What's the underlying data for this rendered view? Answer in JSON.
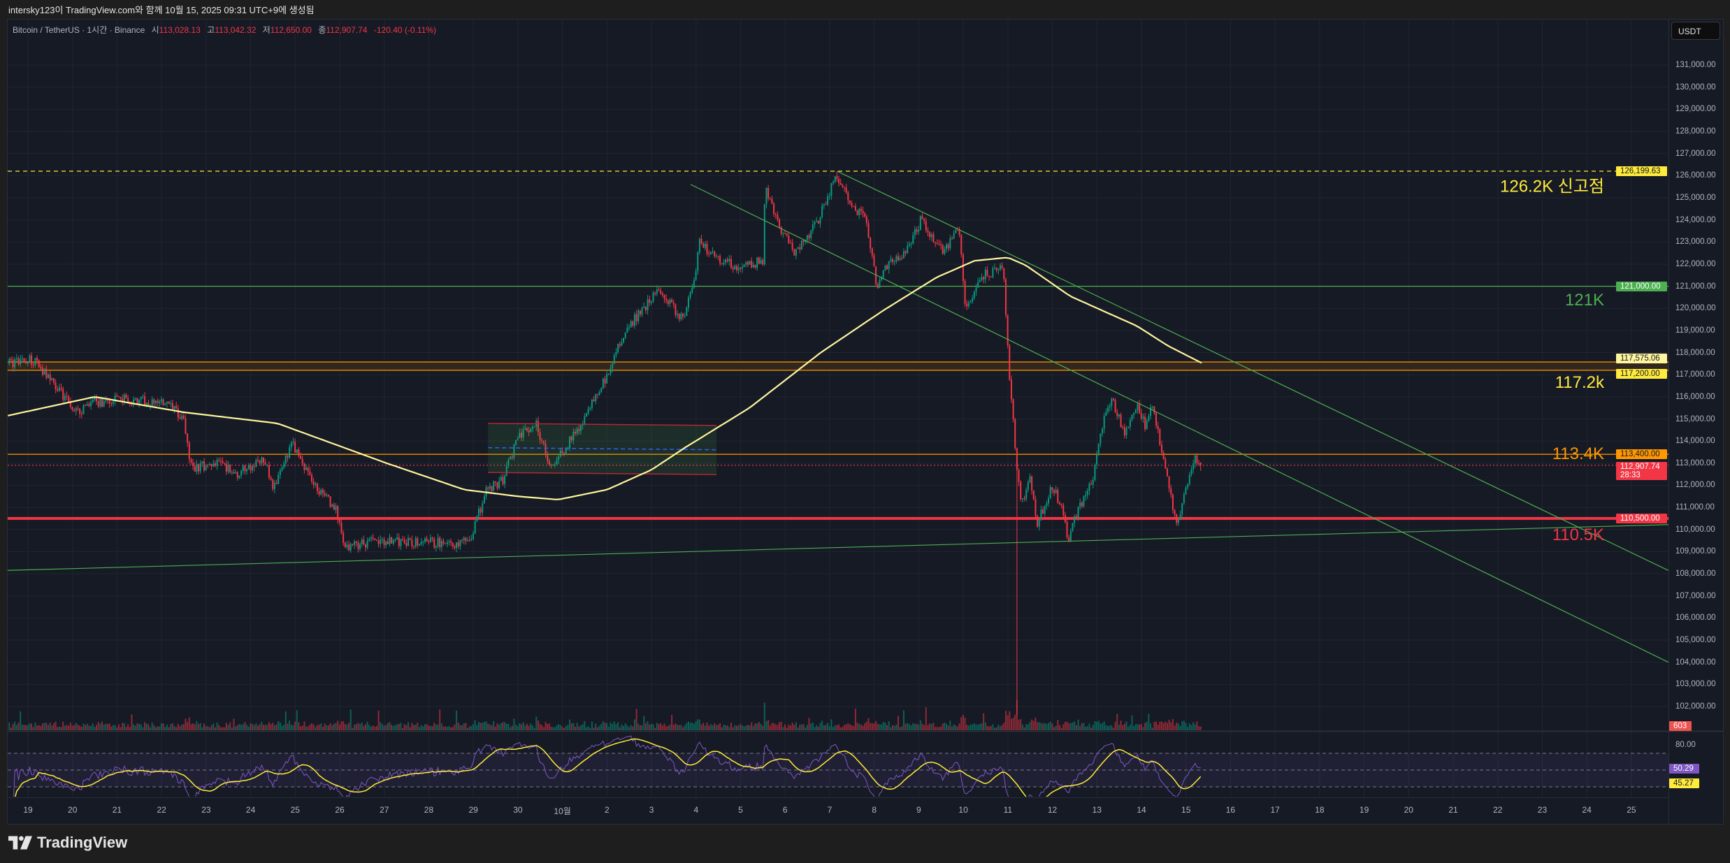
{
  "caption": "intersky123이 TradingView.com와 함께 10월 15, 2025 09:31 UTC+9에 생성됨",
  "legend": {
    "symbol": "Bitcoin / TetherUS · 1시간 · Binance",
    "open_label": "시",
    "open": "113,028.13",
    "high_label": "고",
    "high": "113,042.32",
    "low_label": "저",
    "low": "112,650.00",
    "close_label": "종",
    "close": "112,907.74",
    "change": "-120.40 (-0.11%)"
  },
  "currency_button": "USDT",
  "logo_text": "TradingView",
  "colors": {
    "up": "#089981",
    "down": "#f23645",
    "ma": "#fff59d",
    "rsi": "#7e57c2",
    "rsi_signal": "#ffeb3b",
    "green_line": "#4caf50",
    "orange": "#ff9800",
    "red_line": "#f23645"
  },
  "annotations": [
    {
      "text": "126.2K 신고점",
      "price": 126199.63,
      "color": "#ffeb3b"
    },
    {
      "text": "121K",
      "price": 121000,
      "color": "#4caf50"
    },
    {
      "text": "117.2k",
      "price": 117200,
      "color": "#ffeb3b"
    },
    {
      "text": "113.4K",
      "price": 113400,
      "color": "#ff9800"
    },
    {
      "text": "110.5K",
      "price": 110500,
      "color": "#f23645"
    }
  ],
  "badges": [
    {
      "text": "126,199.63",
      "price": 126199.63,
      "bg": "#ffeb3b",
      "fg": "#131722"
    },
    {
      "text": "121,000.00",
      "price": 121000,
      "bg": "#4caf50",
      "fg": "#ffffff"
    },
    {
      "text": "117,575.06",
      "price": 117575.06,
      "bg": "#fff59d",
      "fg": "#131722"
    },
    {
      "text": "117,200.00",
      "price": 117200,
      "bg": "#ffeb3b",
      "fg": "#131722"
    },
    {
      "text": "113,400.00",
      "price": 113400,
      "bg": "#ff9800",
      "fg": "#131722"
    },
    {
      "text": "112,907.74",
      "sub": "28:33",
      "price": 112907.74,
      "bg": "#f23645",
      "fg": "#ffffff"
    },
    {
      "text": "110,500.00",
      "price": 110500,
      "bg": "#f23645",
      "fg": "#ffffff"
    }
  ],
  "volume_badge": "603",
  "rsi_axis": {
    "tick": "80.00",
    "rsi_value": "50.29",
    "signal_value": "45.27"
  },
  "chart_data": {
    "type": "candlestick",
    "title": "Bitcoin / TetherUS · 1시간 · Binance",
    "x_unit": "days since Sep 19 2025 00:00",
    "y_unit": "USDT",
    "ylim": [
      101500,
      132500
    ],
    "y_ticks": [
      131000,
      130000,
      129000,
      128000,
      127000,
      126000,
      125000,
      124000,
      123000,
      122000,
      121000,
      120000,
      119000,
      118000,
      117000,
      116000,
      115000,
      114000,
      113000,
      112000,
      111000,
      110000,
      109000,
      108000,
      107000,
      106000,
      105000,
      104000,
      103000,
      102000
    ],
    "y_tick_labels": [
      "131,000.00",
      "130,000.00",
      "129,000.00",
      "128,000.00",
      "127,000.00",
      "126,000.00",
      "125,000.00",
      "124,000.00",
      "123,000.00",
      "122,000.00",
      "121,000.00",
      "120,000.00",
      "119,000.00",
      "118,000.00",
      "117,000.00",
      "116,000.00",
      "115,000.00",
      "114,000.00",
      "113,000.00",
      "112,000.00",
      "111,000.00",
      "110,000.00",
      "109,000.00",
      "108,000.00",
      "107,000.00",
      "106,000.00",
      "105,000.00",
      "104,000.00",
      "103,000.00",
      "102,000.00"
    ],
    "x_ticks": [
      0,
      1,
      2,
      3,
      4,
      5,
      6,
      7,
      8,
      9,
      10,
      11,
      12,
      13,
      14,
      15,
      16,
      17,
      18,
      19,
      20,
      21,
      22,
      23,
      24,
      25,
      26,
      27,
      28,
      29,
      30,
      31,
      32,
      33,
      34,
      35,
      36
    ],
    "x_tick_labels": [
      "19",
      "20",
      "21",
      "22",
      "23",
      "24",
      "25",
      "26",
      "27",
      "28",
      "29",
      "30",
      "10월",
      "2",
      "3",
      "4",
      "5",
      "6",
      "7",
      "8",
      "9",
      "10",
      "11",
      "12",
      "13",
      "14",
      "15",
      "16",
      "17",
      "18",
      "19",
      "20",
      "21",
      "22",
      "23",
      "24",
      "25"
    ],
    "price_path": [
      [
        -0.42,
        117500
      ],
      [
        0.1,
        117700
      ],
      [
        0.5,
        116800
      ],
      [
        1.1,
        115300
      ],
      [
        1.4,
        115700
      ],
      [
        2.1,
        115900
      ],
      [
        3.1,
        115700
      ],
      [
        3.5,
        115000
      ],
      [
        3.65,
        112800
      ],
      [
        4.3,
        113000
      ],
      [
        4.7,
        112500
      ],
      [
        5.3,
        113200
      ],
      [
        5.5,
        111800
      ],
      [
        5.95,
        113900
      ],
      [
        6.4,
        112000
      ],
      [
        6.9,
        111000
      ],
      [
        7.1,
        109200
      ],
      [
        7.8,
        109500
      ],
      [
        8.8,
        109400
      ],
      [
        9.9,
        109400
      ],
      [
        10.3,
        111800
      ],
      [
        10.65,
        112200
      ],
      [
        11.0,
        114200
      ],
      [
        11.4,
        114800
      ],
      [
        11.75,
        112800
      ],
      [
        12.5,
        115000
      ],
      [
        13.0,
        117000
      ],
      [
        13.4,
        119000
      ],
      [
        14.15,
        120800
      ],
      [
        14.7,
        119500
      ],
      [
        15.0,
        121500
      ],
      [
        15.05,
        123000
      ],
      [
        15.5,
        122300
      ],
      [
        16.0,
        121800
      ],
      [
        16.5,
        122200
      ],
      [
        16.55,
        125500
      ],
      [
        16.8,
        124000
      ],
      [
        17.2,
        122500
      ],
      [
        17.7,
        123800
      ],
      [
        18.15,
        126000
      ],
      [
        18.55,
        124500
      ],
      [
        18.8,
        124300
      ],
      [
        19.05,
        121000
      ],
      [
        19.3,
        122000
      ],
      [
        19.7,
        122500
      ],
      [
        20.05,
        124000
      ],
      [
        20.55,
        122500
      ],
      [
        20.9,
        123600
      ],
      [
        21.05,
        120000
      ],
      [
        21.4,
        121500
      ],
      [
        21.9,
        121800
      ],
      [
        22.0,
        118000
      ],
      [
        22.15,
        114000
      ],
      [
        22.3,
        111000
      ],
      [
        22.5,
        112500
      ],
      [
        22.65,
        110200
      ],
      [
        23.0,
        112000
      ],
      [
        23.2,
        111000
      ],
      [
        23.35,
        109600
      ],
      [
        23.8,
        112000
      ],
      [
        23.9,
        112300
      ],
      [
        24.15,
        115000
      ],
      [
        24.35,
        115800
      ],
      [
        24.65,
        114300
      ],
      [
        24.9,
        115700
      ],
      [
        25.1,
        114600
      ],
      [
        25.25,
        115800
      ],
      [
        25.5,
        113000
      ],
      [
        25.8,
        110000
      ],
      [
        26.1,
        112700
      ],
      [
        26.2,
        113300
      ],
      [
        26.35,
        112907.74
      ]
    ],
    "extremes": [
      {
        "day": 18.15,
        "high": 126199.63
      },
      {
        "day": 22.2,
        "low": 101600
      }
    ],
    "ma_path": [
      [
        -0.45,
        115150
      ],
      [
        1.5,
        116000
      ],
      [
        3.5,
        115300
      ],
      [
        5.6,
        114800
      ],
      [
        8.05,
        113000
      ],
      [
        9.8,
        111800
      ],
      [
        11.0,
        111500
      ],
      [
        11.9,
        111350
      ],
      [
        13.0,
        111800
      ],
      [
        14.0,
        112700
      ],
      [
        14.75,
        113700
      ],
      [
        16.2,
        115500
      ],
      [
        17.8,
        118000
      ],
      [
        19.2,
        119900
      ],
      [
        20.4,
        121400
      ],
      [
        21.25,
        122150
      ],
      [
        22.0,
        122300
      ],
      [
        22.4,
        121950
      ],
      [
        23.4,
        120550
      ],
      [
        24.9,
        119200
      ],
      [
        25.6,
        118300
      ],
      [
        26.38,
        117500
      ]
    ],
    "horizontal_levels": [
      {
        "price": 126199.63,
        "style": "dashed",
        "color": "#ffeb3b"
      },
      {
        "price": 121000,
        "style": "solid",
        "color": "#4caf50"
      },
      {
        "price": 117575.06,
        "style": "solid",
        "color": "#ff9800"
      },
      {
        "price": 117200,
        "style": "solid",
        "color": "#ff9800"
      },
      {
        "price": 113400,
        "style": "solid",
        "color": "#ff9800"
      },
      {
        "price": 112907.74,
        "style": "dotted",
        "color": "#f23645"
      },
      {
        "price": 110500,
        "style": "thick",
        "color": "#f23645"
      }
    ],
    "zone": {
      "from": 117200,
      "to": 117575.06
    },
    "range_box": {
      "day_from": 10.33,
      "day_to": 15.46,
      "top": 114800,
      "bottom": 112580,
      "mid": 113700
    },
    "trendlines": [
      {
        "from": [
          -0.47,
          108150
        ],
        "to": [
          36.83,
          110220
        ]
      },
      {
        "from": [
          18.17,
          126199.63
        ],
        "to": [
          36.83,
          108150
        ]
      },
      {
        "from": [
          14.88,
          125600
        ],
        "to": [
          36.83,
          104000
        ]
      }
    ],
    "rsi": {
      "period": 14,
      "signal_period": 14,
      "upper": 70,
      "middle": 50,
      "lower": 30,
      "last_rsi": 50.29,
      "last_signal": 45.27
    },
    "volume_last": 603
  }
}
